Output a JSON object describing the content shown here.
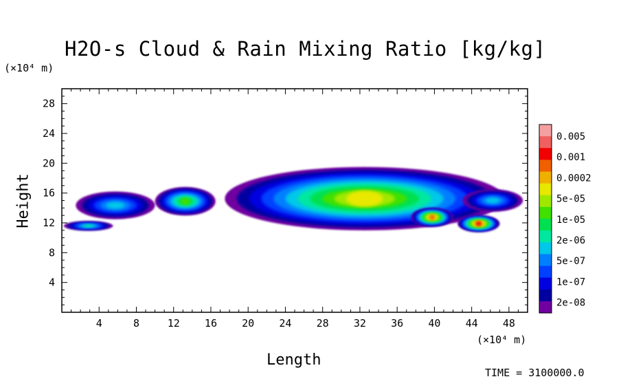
{
  "chart_data": {
    "type": "heatmap",
    "title": "H2O-s Cloud & Rain Mixing Ratio [kg/kg]",
    "xlabel": "Length",
    "ylabel": "Height",
    "x_unit_label": "(×10⁴ m)",
    "y_unit_label": "(×10⁴ m)",
    "xlim": [
      0,
      50
    ],
    "ylim": [
      0,
      30
    ],
    "x_ticks": [
      4,
      8,
      12,
      16,
      20,
      24,
      28,
      32,
      36,
      40,
      44,
      48
    ],
    "y_ticks": [
      4,
      8,
      12,
      16,
      20,
      24,
      28
    ],
    "time_label": "TIME = 3100000.0",
    "colorbar": {
      "labels": [
        "0.005",
        "0.001",
        "0.0002",
        "5e-05",
        "1e-05",
        "2e-06",
        "5e-07",
        "1e-07",
        "2e-08"
      ],
      "colors": [
        "#f5a0a0",
        "#f06060",
        "#f00000",
        "#f06000",
        "#f0b000",
        "#e8e800",
        "#a0e800",
        "#40e000",
        "#00e050",
        "#00e8a0",
        "#00c8e8",
        "#0080ff",
        "#0040ff",
        "#0000e0",
        "#0000a0",
        "#7000a0"
      ]
    },
    "features": [
      {
        "name": "cloud-left-low",
        "x": [
          0.2,
          5.5
        ],
        "y": [
          11.0,
          12.2
        ],
        "peak_level": "5e-06"
      },
      {
        "name": "cloud-left-upper",
        "x": [
          1.5,
          10.0
        ],
        "y": [
          12.5,
          16.2
        ],
        "peak_level": "5e-07"
      },
      {
        "name": "cloud-mid",
        "x": [
          10.0,
          16.5
        ],
        "y": [
          13.0,
          16.8
        ],
        "peak_level": "1e-05"
      },
      {
        "name": "cloud-main-anvil",
        "x": [
          17.5,
          47.5
        ],
        "y": [
          11.0,
          19.5
        ],
        "peak_level": "5e-05"
      },
      {
        "name": "rain-core-west",
        "x": [
          37.5,
          42.0
        ],
        "y": [
          11.5,
          14.0
        ],
        "peak_level": "0.0002"
      },
      {
        "name": "rain-core-east",
        "x": [
          42.5,
          47.0
        ],
        "y": [
          10.8,
          13.0
        ],
        "peak_level": "0.001"
      },
      {
        "name": "cloud-right-anvil",
        "x": [
          43.0,
          49.5
        ],
        "y": [
          13.5,
          16.5
        ],
        "peak_level": "5e-07"
      }
    ]
  }
}
